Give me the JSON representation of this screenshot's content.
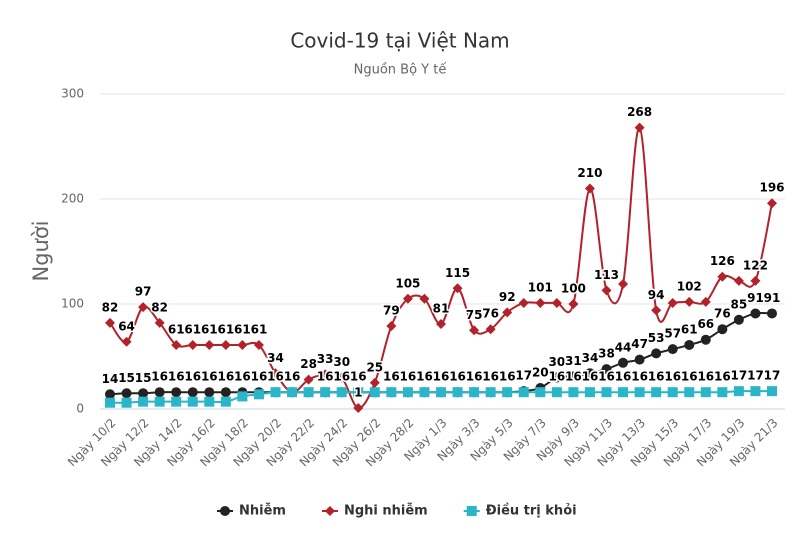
{
  "chart_data": {
    "type": "line",
    "title": "Covid-19 tại Việt Nam",
    "subtitle": "Nguồn Bộ Y tế",
    "y_label": "Người",
    "categories": [
      "Ngày 10/2",
      null,
      "Ngày 12/2",
      null,
      "Ngày 14/2",
      null,
      "Ngày 16/2",
      null,
      "Ngày 18/2",
      null,
      "Ngày 20/2",
      null,
      "Ngày 22/2",
      null,
      "Ngày 24/2",
      null,
      "Ngày 26/2",
      null,
      "Ngày 28/2",
      null,
      "Ngày 1/3",
      null,
      "Ngày 3/3",
      null,
      "Ngày 5/3",
      null,
      "Ngày 7/3",
      null,
      "Ngày 9/3",
      null,
      "Ngày 11/3",
      null,
      "Ngày 13/3",
      null,
      "Ngày 15/3",
      null,
      "Ngày 17/3",
      null,
      "Ngày 19/3",
      null,
      "Ngày 21/3"
    ],
    "series": [
      {
        "name": "Nhiễm",
        "color": "#222222",
        "marker": "circle",
        "values": [
          14,
          15,
          15,
          16,
          16,
          16,
          16,
          16,
          16,
          16,
          16,
          16,
          16,
          16,
          16,
          16,
          16,
          16,
          16,
          16,
          16,
          16,
          16,
          16,
          16,
          17,
          20,
          30,
          31,
          34,
          38,
          44,
          47,
          53,
          57,
          61,
          66,
          76,
          85,
          91,
          91
        ]
      },
      {
        "name": "Nghi nhiễm",
        "color": "#b2222a",
        "marker": "diamond",
        "values": [
          82,
          64,
          97,
          82,
          61,
          61,
          61,
          61,
          61,
          61,
          34,
          16,
          28,
          33,
          30,
          1,
          25,
          79,
          105,
          105,
          81,
          115,
          75,
          76,
          92,
          101,
          101,
          101,
          100,
          210,
          113,
          119,
          268,
          94,
          101,
          102,
          102,
          126,
          122,
          122,
          196
        ]
      },
      {
        "name": "Điều trị khỏi",
        "color": "#2bb5c8",
        "marker": "square",
        "values": [
          6,
          6,
          7,
          7,
          7,
          7,
          7,
          7,
          12,
          14,
          16,
          16,
          16,
          16,
          16,
          16,
          16,
          16,
          16,
          16,
          16,
          16,
          16,
          16,
          16,
          16,
          16,
          16,
          16,
          16,
          16,
          16,
          16,
          16,
          16,
          16,
          16,
          16,
          17,
          17,
          17
        ]
      }
    ],
    "ylim": [
      0,
      300
    ],
    "yticks": [
      0,
      100,
      200,
      300
    ],
    "grid": true
  }
}
